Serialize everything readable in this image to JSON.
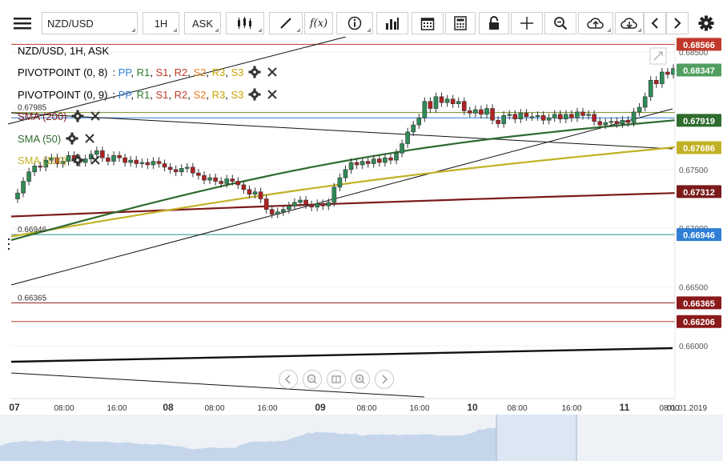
{
  "toolbar": {
    "symbol": "NZD/USD",
    "timeframe": "1H",
    "price_side": "ASK",
    "fx_label": "f(x)",
    "icons": [
      "menu-icon",
      "candles-icon",
      "draw-pencil-icon",
      "function-icon",
      "info-icon",
      "bar-chart-icon",
      "calendar-icon",
      "calculator-icon",
      "lock-icon",
      "crosshair-icon",
      "zoom-icon",
      "cloud-upload-icon",
      "cloud-download-icon",
      "arrow-left-icon",
      "arrow-right-icon",
      "gear-icon"
    ]
  },
  "legend": {
    "title": "NZD/USD, 1H, ASK",
    "pivot1": {
      "label": "PIVOTPOINT (0, 8)",
      "levels": [
        "PP",
        "R1",
        "S1",
        "R2",
        "S2",
        "R3",
        "S3"
      ]
    },
    "pivot2": {
      "label": "PIVOTPOINT (0, 9)",
      "levels": [
        "PP",
        "R1",
        "S1",
        "R2",
        "S2",
        "R3",
        "S3"
      ]
    },
    "sma200": "SMA (200)",
    "sma50": "SMA (50)",
    "sma100": "SMA (100)"
  },
  "colors": {
    "PP": "#2f7fd4",
    "R1": "#2e7d32",
    "S1": "#c0392b",
    "R2": "#c0392b",
    "S2": "#e67e22",
    "R3": "#c9a300",
    "S3": "#c9a300",
    "sma200": "#7b1a1a",
    "sma50": "#2e6b2e",
    "sma100": "#c2b126",
    "bull": "#2e8b57",
    "bear": "#b22222"
  },
  "chart_data": {
    "type": "candlestick",
    "y_range": [
      0.6555,
      0.6863
    ],
    "y_ticks": [
      "0.68500",
      "0.67500",
      "0.67000",
      "0.66500",
      "0.66000"
    ],
    "x_labels": [
      "07",
      "08:00",
      "16:00",
      "08",
      "08:00",
      "16:00",
      "09",
      "08:00",
      "16:00",
      "10",
      "08:00",
      "16:00",
      "11",
      "08:00"
    ],
    "current_time_label": "01.01.2019",
    "price_tags": [
      {
        "value": "0.68566",
        "price": 0.68566,
        "bg": "#c0392b"
      },
      {
        "value": "0.68347",
        "price": 0.68347,
        "bg": "#4f9e5f"
      },
      {
        "value": "0.67919",
        "price": 0.67919,
        "bg": "#2e6b2e"
      },
      {
        "value": "0.67686",
        "price": 0.67686,
        "bg": "#c2b126"
      },
      {
        "value": "0.67312",
        "price": 0.67312,
        "bg": "#7b1a1a"
      },
      {
        "value": "0.66946",
        "price": 0.66946,
        "bg": "#2f7fd4"
      },
      {
        "value": "0.66365",
        "price": 0.66365,
        "bg": "#8b1a1a"
      },
      {
        "value": "0.66206",
        "price": 0.66206,
        "bg": "#8b1a1a"
      }
    ],
    "left_level_labels": [
      {
        "value": "0.67985",
        "price": 0.67985
      },
      {
        "value": "0.66946",
        "price": 0.66946
      },
      {
        "value": "0.66365",
        "price": 0.66365
      }
    ],
    "horizontal_levels": [
      {
        "price": 0.68566,
        "color": "#c0392b"
      },
      {
        "price": 0.67985,
        "color": "#7a8f2a"
      },
      {
        "price": 0.6794,
        "color": "#2f7fd4"
      },
      {
        "price": 0.66946,
        "color": "#2a8f8f"
      },
      {
        "price": 0.66365,
        "color": "#8b1a1a"
      },
      {
        "price": 0.66206,
        "color": "#c0392b"
      }
    ],
    "closes": [
      0.673,
      0.674,
      0.6748,
      0.6753,
      0.6752,
      0.6758,
      0.676,
      0.6755,
      0.6757,
      0.6762,
      0.6759,
      0.6756,
      0.6759,
      0.6763,
      0.6766,
      0.676,
      0.6757,
      0.6762,
      0.676,
      0.6756,
      0.6758,
      0.6755,
      0.6756,
      0.6754,
      0.6757,
      0.6755,
      0.6752,
      0.675,
      0.6748,
      0.6751,
      0.6752,
      0.6747,
      0.6745,
      0.6741,
      0.6743,
      0.674,
      0.6738,
      0.6742,
      0.674,
      0.6737,
      0.6733,
      0.6729,
      0.6731,
      0.6725,
      0.6716,
      0.6712,
      0.6714,
      0.6716,
      0.6719,
      0.6722,
      0.6724,
      0.672,
      0.6718,
      0.6721,
      0.6719,
      0.6722,
      0.6735,
      0.6743,
      0.675,
      0.6756,
      0.6754,
      0.6757,
      0.6755,
      0.6759,
      0.6756,
      0.676,
      0.6758,
      0.6764,
      0.6772,
      0.6782,
      0.6788,
      0.6794,
      0.6808,
      0.6802,
      0.6812,
      0.6807,
      0.681,
      0.6806,
      0.6808,
      0.68,
      0.6798,
      0.6801,
      0.6797,
      0.6802,
      0.6792,
      0.6789,
      0.6796,
      0.6797,
      0.6793,
      0.6798,
      0.6795,
      0.6795,
      0.6796,
      0.6792,
      0.6794,
      0.6797,
      0.6793,
      0.6797,
      0.6794,
      0.6799,
      0.6796,
      0.6797,
      0.6791,
      0.6788,
      0.679,
      0.6791,
      0.6789,
      0.6792,
      0.679,
      0.6799,
      0.6803,
      0.6812,
      0.6826,
      0.6823,
      0.6833,
      0.6831,
      0.6836
    ],
    "sma200": {
      "start": 0.671,
      "end": 0.673
    },
    "sma50": {
      "start": 0.669,
      "end": 0.6792
    },
    "sma100": {
      "start": 0.6693,
      "end": 0.6769
    }
  },
  "nav": [
    "arrow-left-icon",
    "zoom-out-icon",
    "fit-icon",
    "zoom-in-icon",
    "arrow-right-icon"
  ]
}
